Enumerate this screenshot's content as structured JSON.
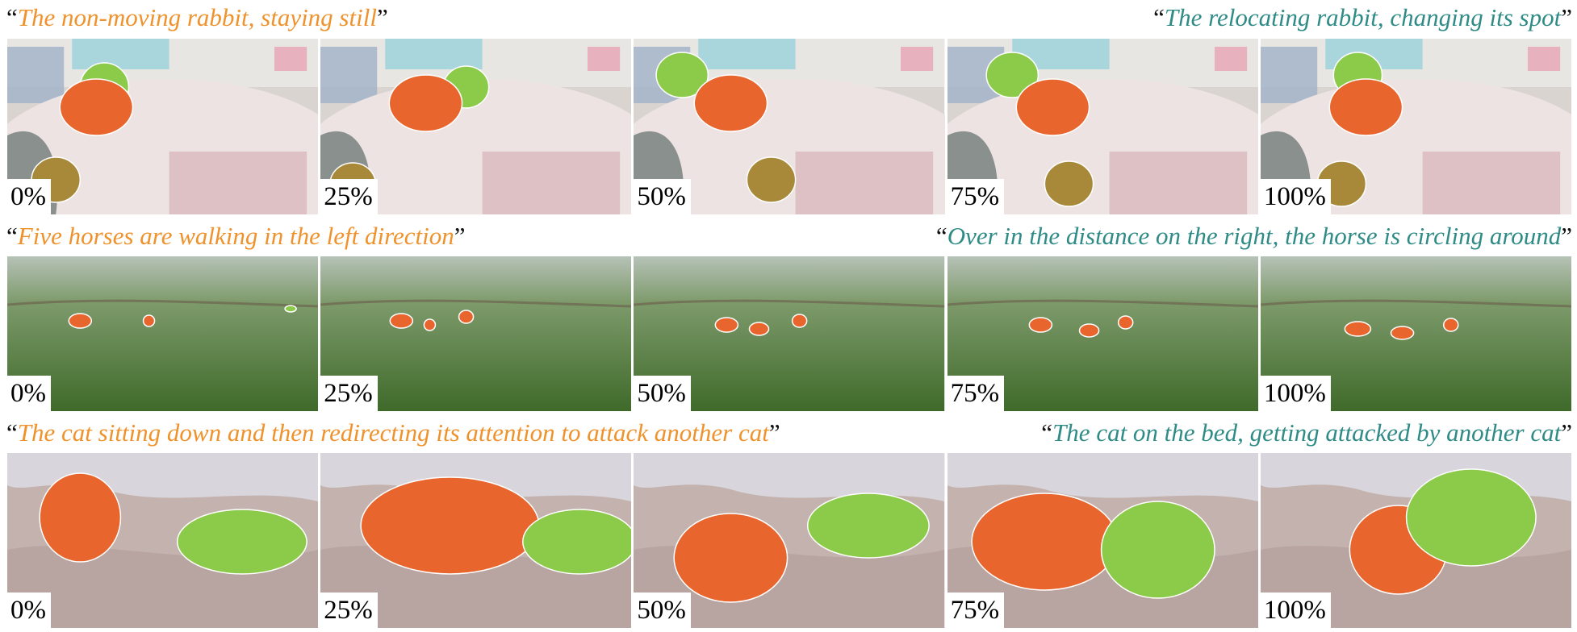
{
  "colors": {
    "left_caption": "#F0922B",
    "right_caption": "#2E8B86",
    "mask_orange": "#E8662E",
    "mask_green": "#8CCB4A",
    "mask_olive": "#A8893A"
  },
  "rows": [
    {
      "caption_left": "The non-moving rabbit, staying still",
      "caption_right": "The relocating rabbit, changing its spot",
      "scene": "indoor-rug",
      "frames": [
        "0%",
        "25%",
        "50%",
        "75%",
        "100%"
      ]
    },
    {
      "caption_left": "Five horses are walking in the left direction",
      "caption_right": "Over in the distance on the right, the horse is circling around",
      "scene": "grassland",
      "frames": [
        "0%",
        "25%",
        "50%",
        "75%",
        "100%"
      ]
    },
    {
      "caption_left": "The cat sitting down and then redirecting its attention to attack another cat",
      "caption_right": "The cat on the bed, getting attacked by another cat",
      "scene": "bed",
      "frames": [
        "0%",
        "25%",
        "50%",
        "75%",
        "100%"
      ]
    }
  ],
  "quote_open": "“",
  "quote_close": "”"
}
